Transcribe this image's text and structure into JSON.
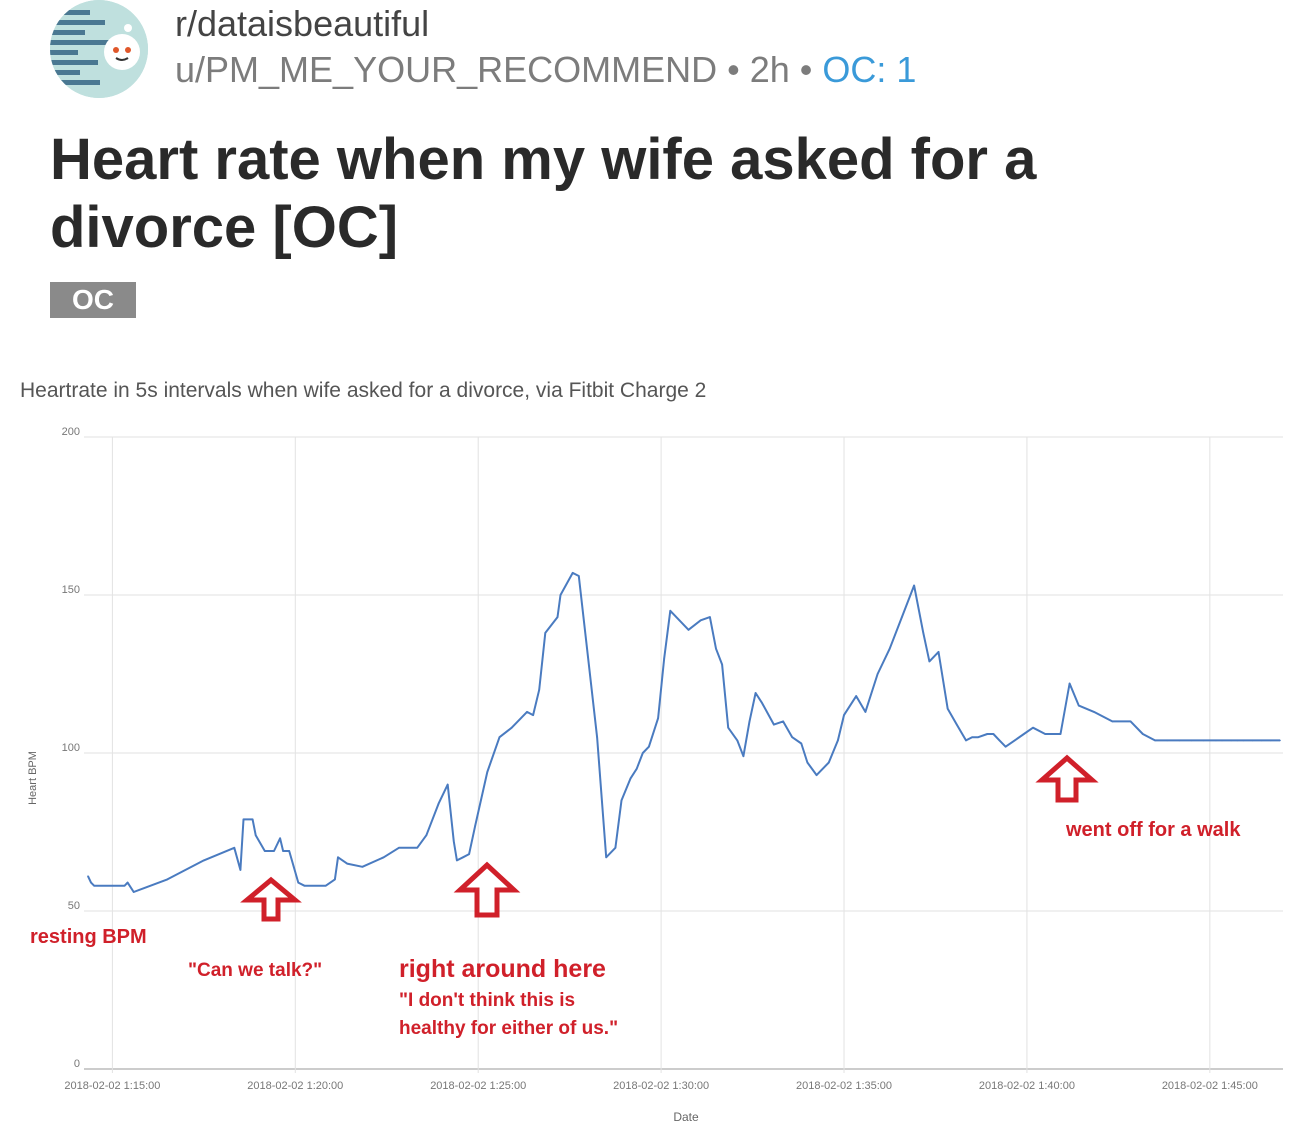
{
  "post": {
    "subreddit": "r/dataisbeautiful",
    "author": "u/PM_ME_YOUR_RECOMMEND",
    "bullet": "•",
    "age": "2h",
    "oc_count": "OC: 1",
    "title": "Heart rate when my wife asked for a divorce [OC]",
    "flair": "OC"
  },
  "colors": {
    "line": "#4a7bc0",
    "grid": "#e2e2e2",
    "annotation": "#d0202a",
    "link": "#3a9ad9"
  },
  "icons": {
    "avatar": "reddit-snoo-avatar-icon"
  },
  "chart_data": {
    "type": "line",
    "title": "Heartrate in 5s intervals when wife asked for a divorce, via Fitbit Charge 2",
    "xlabel": "Date",
    "ylabel": "Heart BPM",
    "ylim": [
      0,
      200
    ],
    "yticks": [
      0,
      50,
      100,
      150,
      200
    ],
    "xlim": [
      "2018-02-02 1:14:20",
      "2018-02-02 1:47:00"
    ],
    "xticks": [
      "2018-02-02 1:15:00",
      "2018-02-02 1:20:00",
      "2018-02-02 1:25:00",
      "2018-02-02 1:30:00",
      "2018-02-02 1:35:00",
      "2018-02-02 1:40:00",
      "2018-02-02 1:45:00"
    ],
    "grid": true,
    "series": [
      {
        "x": [
          "1:14:20",
          "1:14:25",
          "1:14:30",
          "1:15:00",
          "1:15:20",
          "1:15:25",
          "1:15:35",
          "1:16:30",
          "1:17:30",
          "1:18:20",
          "1:18:30",
          "1:18:35",
          "1:18:50",
          "1:18:55",
          "1:19:10",
          "1:19:25",
          "1:19:35",
          "1:19:40",
          "1:19:50",
          "1:20:05",
          "1:20:15",
          "1:20:50",
          "1:21:05",
          "1:21:10",
          "1:21:25",
          "1:21:50",
          "1:22:25",
          "1:22:50",
          "1:23:20",
          "1:23:35",
          "1:23:55",
          "1:24:10",
          "1:24:20",
          "1:24:25",
          "1:24:35",
          "1:24:45",
          "1:24:55",
          "1:25:15",
          "1:25:35",
          "1:25:55",
          "1:26:20",
          "1:26:30",
          "1:26:40",
          "1:26:50",
          "1:27:10",
          "1:27:15",
          "1:27:35",
          "1:27:45",
          "1:28:15",
          "1:28:30",
          "1:28:45",
          "1:28:55",
          "1:29:10",
          "1:29:20",
          "1:29:30",
          "1:29:40",
          "1:29:55",
          "1:30:05",
          "1:30:15",
          "1:30:30",
          "1:30:45",
          "1:31:05",
          "1:31:20",
          "1:31:30",
          "1:31:40",
          "1:31:50",
          "1:32:05",
          "1:32:15",
          "1:32:25",
          "1:32:35",
          "1:32:45",
          "1:33:05",
          "1:33:20",
          "1:33:35",
          "1:33:50",
          "1:34:00",
          "1:34:15",
          "1:34:35",
          "1:34:50",
          "1:35:00",
          "1:35:20",
          "1:35:35",
          "1:35:55",
          "1:36:15",
          "1:36:35",
          "1:36:55",
          "1:37:10",
          "1:37:20",
          "1:37:35",
          "1:37:50",
          "1:38:05",
          "1:38:20",
          "1:38:30",
          "1:38:40",
          "1:38:55",
          "1:39:05",
          "1:39:15",
          "1:39:25",
          "1:39:40",
          "1:39:55",
          "1:40:10",
          "1:40:30",
          "1:40:40",
          "1:40:55",
          "1:41:10",
          "1:41:25",
          "1:41:50",
          "1:42:20",
          "1:42:50",
          "1:43:10",
          "1:43:30",
          "1:43:50",
          "1:44:10",
          "1:44:30",
          "1:44:50",
          "1:45:10",
          "1:45:20",
          "1:45:35",
          "1:45:45",
          "1:45:55",
          "1:46:10",
          "1:46:25",
          "1:46:40",
          "1:46:55"
        ],
        "y": [
          61,
          59,
          58,
          58,
          58,
          59,
          56,
          60,
          66,
          70,
          63,
          79,
          79,
          74,
          69,
          69,
          73,
          69,
          69,
          59,
          58,
          58,
          60,
          67,
          65,
          64,
          67,
          70,
          70,
          74,
          84,
          90,
          72,
          66,
          67,
          68,
          77,
          94,
          105,
          108,
          113,
          112,
          120,
          138,
          143,
          150,
          157,
          156,
          105,
          67,
          70,
          85,
          92,
          95,
          100,
          102,
          111,
          130,
          145,
          142,
          139,
          142,
          143,
          133,
          128,
          108,
          104,
          99,
          110,
          119,
          116,
          109,
          110,
          105,
          103,
          97,
          93,
          97,
          104,
          112,
          118,
          113,
          125,
          133,
          143,
          153,
          138,
          129,
          132,
          114,
          109,
          104,
          105,
          105,
          106,
          106,
          104,
          102,
          104,
          106,
          108,
          106,
          106,
          106,
          122,
          115,
          113,
          110,
          110,
          106,
          104,
          104,
          104,
          104,
          104,
          104,
          104,
          104,
          104,
          104,
          104,
          104,
          104,
          104
        ]
      }
    ],
    "annotations": [
      {
        "text": "resting BPM",
        "at": "1:14:20"
      },
      {
        "text": "\"Can we talk?\"",
        "at": "1:19:10"
      },
      {
        "text": "right around here",
        "at": "1:24:35"
      },
      {
        "text": "\"I don't think this is",
        "at": "1:24:35"
      },
      {
        "text": "healthy for either of us.\"",
        "at": "1:24:35"
      },
      {
        "text": "went off for a walk",
        "at": "1:41:50"
      }
    ]
  }
}
